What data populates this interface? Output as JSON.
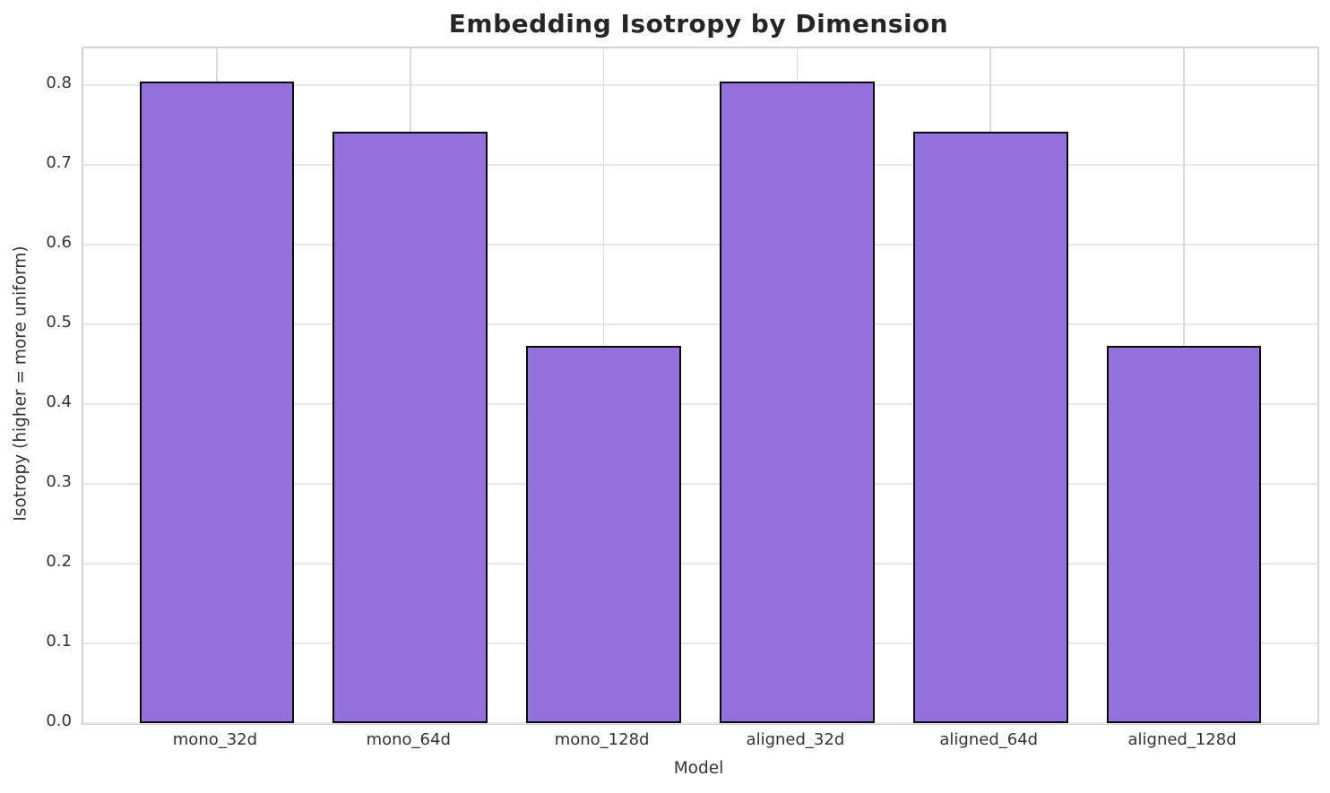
{
  "chart_data": {
    "type": "bar",
    "title": "Embedding Isotropy by Dimension",
    "xlabel": "Model",
    "ylabel": "Isotropy (higher = more uniform)",
    "categories": [
      "mono_32d",
      "mono_64d",
      "mono_128d",
      "aligned_32d",
      "aligned_64d",
      "aligned_128d"
    ],
    "values": [
      0.805,
      0.741,
      0.473,
      0.805,
      0.741,
      0.473
    ],
    "ylim": [
      0,
      0.846
    ],
    "xlim": [
      -0.69,
      5.69
    ],
    "bar_width": 0.8,
    "yticks": [
      0.0,
      0.1,
      0.2,
      0.3,
      0.4,
      0.5,
      0.6,
      0.7,
      0.8
    ],
    "ytick_labels": [
      "0.0",
      "0.1",
      "0.2",
      "0.3",
      "0.4",
      "0.5",
      "0.6",
      "0.7",
      "0.8"
    ],
    "bar_color": "#9370db",
    "bar_edge_color": "#0a0a0a",
    "grid": true,
    "grid_color": "#e8e8e8",
    "legend_position": "none",
    "background_color": "#ffffff"
  }
}
